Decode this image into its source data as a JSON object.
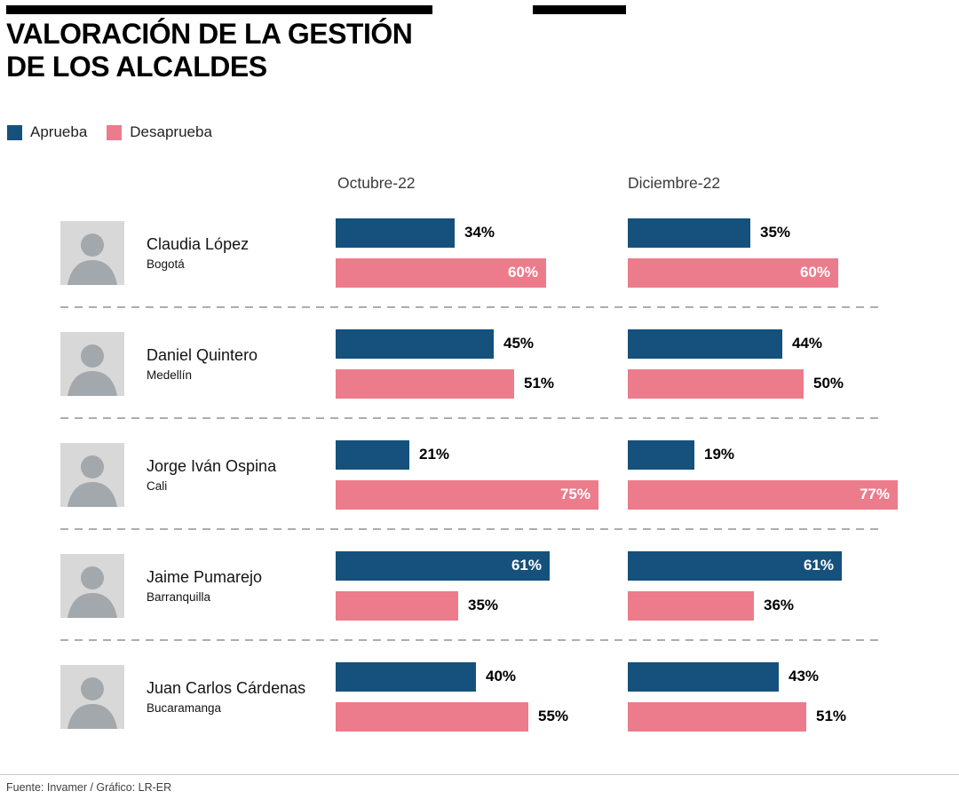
{
  "header": {
    "title_line1": "VALORACIÓN DE LA GESTIÓN",
    "title_line2": "DE LOS ALCALDES"
  },
  "legend": [
    {
      "label": "Aprueba",
      "color": "#15517c"
    },
    {
      "label": "Desaprueba",
      "color": "#ec7c8b"
    }
  ],
  "columns": [
    "Octubre-22",
    "Diciembre-22"
  ],
  "chart_data": {
    "type": "bar",
    "orientation": "horizontal",
    "unit": "%",
    "xlim": [
      0,
      100
    ],
    "series_names": [
      "Aprueba",
      "Desaprueba"
    ],
    "colors": {
      "aprueba": "#15517c",
      "desaprueba": "#ec7c8b"
    },
    "column_periods": [
      "Octubre-22",
      "Diciembre-22"
    ],
    "rows": [
      {
        "name": "Claudia López",
        "city": "Bogotá",
        "octubre": {
          "aprueba": 34,
          "desaprueba": 60
        },
        "diciembre": {
          "aprueba": 35,
          "desaprueba": 60
        }
      },
      {
        "name": "Daniel Quintero",
        "city": "Medellín",
        "octubre": {
          "aprueba": 45,
          "desaprueba": 51
        },
        "diciembre": {
          "aprueba": 44,
          "desaprueba": 50
        }
      },
      {
        "name": "Jorge Iván Ospina",
        "city": "Cali",
        "octubre": {
          "aprueba": 21,
          "desaprueba": 75
        },
        "diciembre": {
          "aprueba": 19,
          "desaprueba": 77
        }
      },
      {
        "name": "Jaime Pumarejo",
        "city": "Barranquilla",
        "octubre": {
          "aprueba": 61,
          "desaprueba": 35
        },
        "diciembre": {
          "aprueba": 61,
          "desaprueba": 36
        }
      },
      {
        "name": "Juan Carlos Cárdenas",
        "city": "Bucaramanga",
        "octubre": {
          "aprueba": 40,
          "desaprueba": 55
        },
        "diciembre": {
          "aprueba": 43,
          "desaprueba": 51
        }
      }
    ]
  },
  "footer": {
    "source": "Fuente: Invamer / Gráfico: LR-ER"
  }
}
